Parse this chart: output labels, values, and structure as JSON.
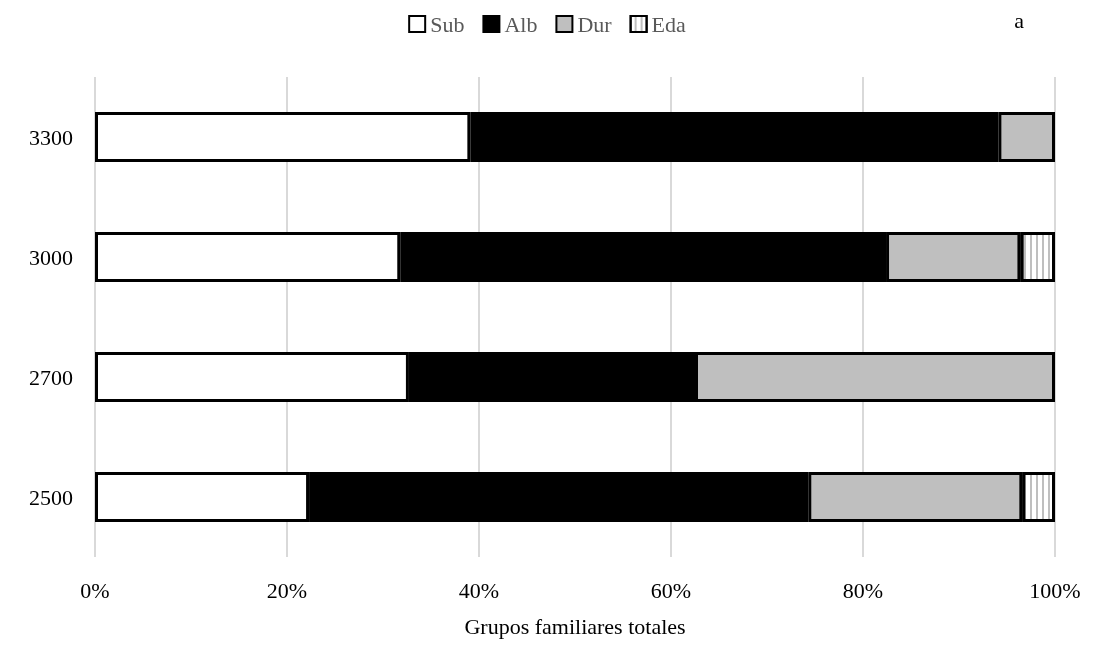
{
  "chart_data": {
    "type": "bar",
    "orientation": "horizontal",
    "stacked": true,
    "categories": [
      "3300",
      "3000",
      "2700",
      "2500"
    ],
    "series": [
      {
        "name": "Sub",
        "color": "#ffffff",
        "values": [
          39.1,
          31.8,
          32.7,
          22.3
        ]
      },
      {
        "name": "Alb",
        "color": "#000000",
        "values": [
          55.0,
          50.6,
          29.8,
          52.0
        ]
      },
      {
        "name": "Dur",
        "color": "#bfbfbf",
        "values": [
          5.9,
          14.0,
          37.5,
          22.3
        ]
      },
      {
        "name": "Eda",
        "color": "#ffffff",
        "values": [
          null,
          3.6,
          null,
          3.4
        ]
      }
    ],
    "xlim": [
      0,
      100
    ],
    "xticks": [
      {
        "value": 0,
        "label": "0%"
      },
      {
        "value": 20,
        "label": "20%"
      },
      {
        "value": 40,
        "label": "40%"
      },
      {
        "value": 60,
        "label": "60%"
      },
      {
        "value": 80,
        "label": "80%"
      },
      {
        "value": 100,
        "label": "100%"
      }
    ],
    "xlabel": "Grupos familiares totales",
    "annotations": [
      "a"
    ],
    "grid": "x",
    "legend": "top"
  }
}
